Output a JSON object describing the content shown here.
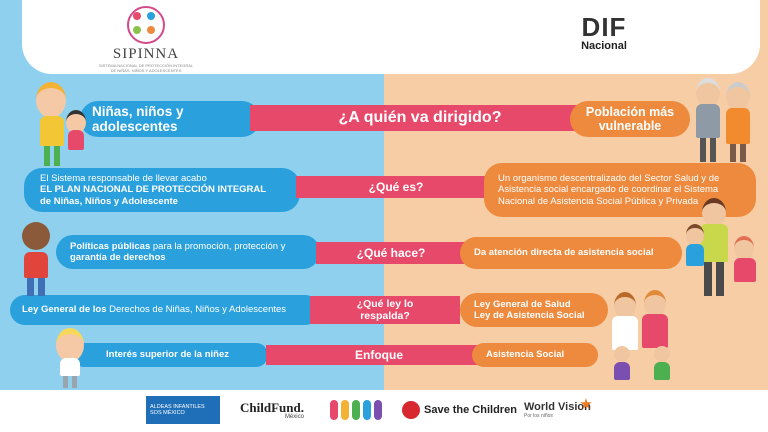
{
  "header": {
    "left_logo": {
      "name": "SIPINNA",
      "subtitle": "SISTEMA NACIONAL DE PROTECCIÓN INTEGRAL DE NIÑAS, NIÑOS Y ADOLESCENTES"
    },
    "right_logo": {
      "name": "DIF",
      "subtitle": "Nacional"
    }
  },
  "rows": [
    {
      "left": "Niñas, niños y adolescentes",
      "center": "¿A quién va dirigido?",
      "right": "Población más vulnerable"
    },
    {
      "left_line1": "El Sistema responsable de llevar acabo",
      "left_line2": "EL PLAN NACIONAL DE PROTECCIÓN INTEGRAL",
      "left_line3": "de Niñas, Niños y Adolescente",
      "center": "¿Qué es?",
      "right": "Un organismo descentralizado del Sector Salud y de Asistencia social encargado de coordinar el Sistema Nacional de Asistencia Social Pública y Privada"
    },
    {
      "left_bold": "Políticas públicas",
      "left_rest": " para la promoción, protección y",
      "left_line2": "garantía de derechos",
      "center": "¿Qué hace?",
      "right": "Da atención directa de asistencia social"
    },
    {
      "left_pre": "Ley General de los",
      "left_rest": " Derechos de Niñas, Niños y Adolescentes",
      "center": "¿Qué ley lo respalda?",
      "right_line1": "Ley General de Salud",
      "right_line2": "Ley de Asistencia Social"
    },
    {
      "left": "Interés superior de la niñez",
      "center": "Enfoque",
      "right": "Asistencia Social"
    }
  ],
  "footer": {
    "aldeas": "ALDEAS INFANTILES SOS MÉXICO",
    "childfund": "ChildFund.",
    "childfund_sub": "México",
    "save": "Save the Children",
    "worldvision": "World Vision",
    "worldvision_sub": "Por los niños"
  },
  "colors": {
    "blue": "#2aa0dc",
    "orange": "#ee8a3d",
    "pink": "#e7496a",
    "bg_left": "#8fd0ee",
    "bg_right": "#f7cda6"
  }
}
